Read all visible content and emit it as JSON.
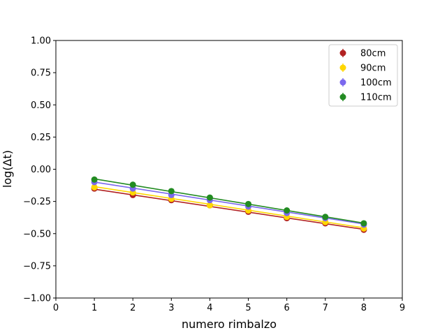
{
  "chart_data": {
    "type": "scatter",
    "title": "",
    "xlabel": "numero rimbalzo",
    "ylabel": "log(Δt)",
    "xlim": [
      0,
      9
    ],
    "ylim": [
      -1.0,
      1.0
    ],
    "xticks": [
      "0",
      "1",
      "2",
      "3",
      "4",
      "5",
      "6",
      "7",
      "8",
      "9"
    ],
    "yticks": [
      "−1.00",
      "−0.75",
      "−0.50",
      "−0.25",
      "0.00",
      "0.25",
      "0.50",
      "0.75",
      "1.00"
    ],
    "grid": false,
    "legend_position": "top-right",
    "x": [
      1,
      2,
      3,
      4,
      5,
      6,
      7,
      8
    ],
    "series": [
      {
        "name": "80cm",
        "color": "#b22222",
        "values": [
          -0.15,
          -0.2,
          -0.24,
          -0.28,
          -0.33,
          -0.38,
          -0.42,
          -0.47
        ],
        "fit": [
          -0.155,
          -0.467
        ]
      },
      {
        "name": "90cm",
        "color": "#ffd700",
        "values": [
          -0.14,
          -0.18,
          -0.23,
          -0.28,
          -0.32,
          -0.37,
          -0.41,
          -0.46
        ],
        "fit": [
          -0.135,
          -0.455
        ]
      },
      {
        "name": "100cm",
        "color": "#7b68ee",
        "values": [
          -0.1,
          -0.15,
          -0.2,
          -0.24,
          -0.29,
          -0.34,
          -0.38,
          -0.43
        ],
        "fit": [
          -0.1,
          -0.425
        ]
      },
      {
        "name": "110cm",
        "color": "#228b22",
        "values": [
          -0.08,
          -0.12,
          -0.17,
          -0.22,
          -0.27,
          -0.32,
          -0.37,
          -0.42
        ],
        "fit": [
          -0.075,
          -0.418
        ]
      }
    ]
  }
}
